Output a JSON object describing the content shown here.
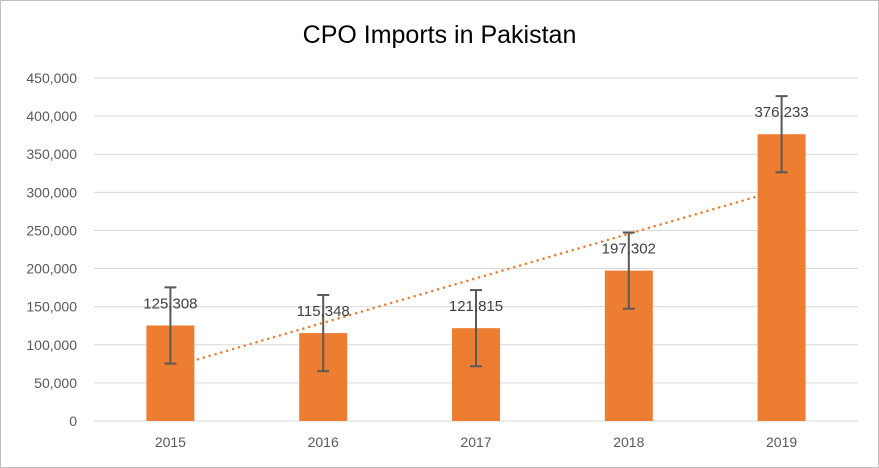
{
  "chart_data": {
    "type": "bar",
    "title": "CPO Imports in Pakistan",
    "xlabel": "",
    "ylabel": "",
    "categories": [
      "2015",
      "2016",
      "2017",
      "2018",
      "2019"
    ],
    "values": [
      125308,
      115348,
      121815,
      197302,
      376233
    ],
    "data_labels": [
      "125,308",
      "115,348",
      "121,815",
      "197,302",
      "376,233"
    ],
    "error_bars": {
      "type": "fixed",
      "value": 50000
    },
    "trendline": {
      "type": "linear",
      "style": "dotted"
    },
    "ylim": [
      0,
      450000
    ],
    "yticks": [
      0,
      50000,
      100000,
      150000,
      200000,
      250000,
      300000,
      350000,
      400000,
      450000
    ],
    "ytick_labels": [
      "0",
      "50,000",
      "100,000",
      "150,000",
      "200,000",
      "250,000",
      "300,000",
      "350,000",
      "400,000",
      "450,000"
    ],
    "grid": true,
    "legend": "none",
    "colors": {
      "bar": "#ED7D31",
      "grid": "#D9D9D9",
      "error_bar": "#595959",
      "trendline": "#ED7D31"
    }
  }
}
